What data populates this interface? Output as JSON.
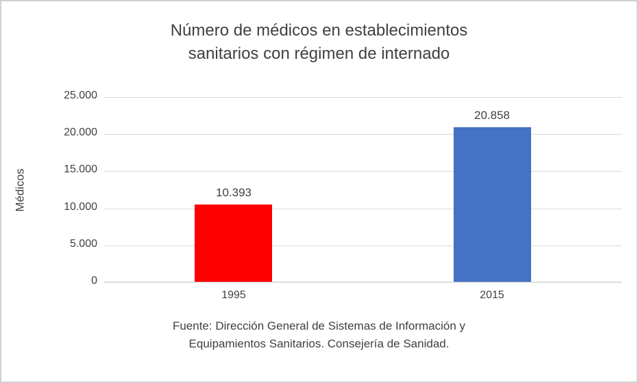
{
  "chart_data": {
    "type": "bar",
    "title": "Número de médicos en establecimientos sanitarios con régimen de internado",
    "title_lines": [
      "Número de médicos en establecimientos",
      "sanitarios con régimen de internado"
    ],
    "ylabel": "Médicos",
    "xlabel": "",
    "categories": [
      "1995",
      "2015"
    ],
    "values": [
      10393,
      20858
    ],
    "data_labels": [
      "10.393",
      "20.858"
    ],
    "bar_colors": [
      "#ff0000",
      "#4472c4"
    ],
    "ylim": [
      0,
      25000
    ],
    "ytick_interval": 5000,
    "ytick_labels": [
      "0",
      "5.000",
      "10.000",
      "15.000",
      "20.000",
      "25.000"
    ],
    "grid": "horizontal",
    "gridline_color": "#d9d9d9",
    "axis_line_color": "#bfbfbf",
    "text_color": "#404040",
    "legend_position": "none",
    "source_lines": [
      "Fuente: Dirección General de Sistemas de Información y",
      "Equipamientos Sanitarios. Consejería de Sanidad."
    ]
  }
}
